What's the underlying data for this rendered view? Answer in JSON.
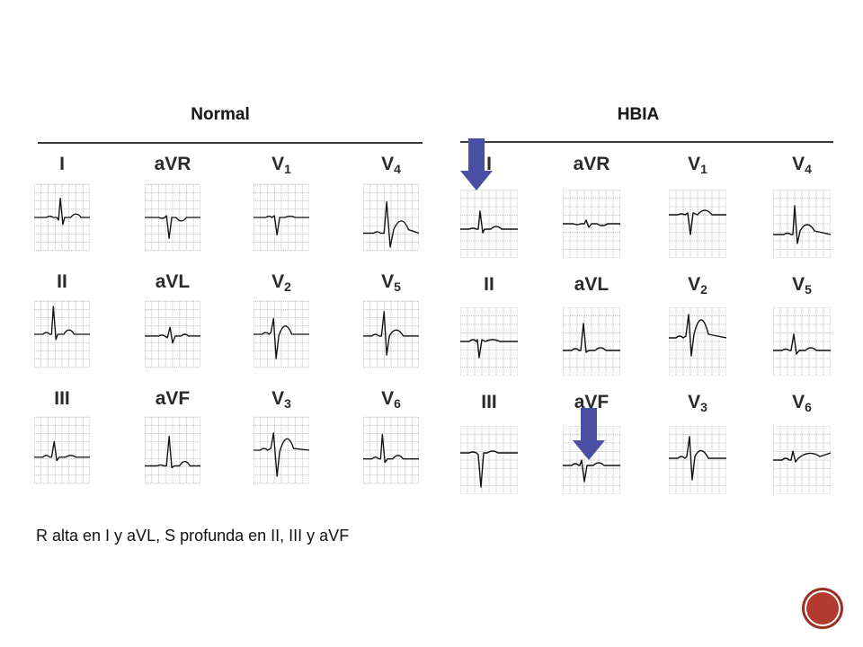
{
  "panels": {
    "normal": {
      "title": "Normal",
      "leads": [
        {
          "name": "I",
          "sub": ""
        },
        {
          "name": "aVR",
          "sub": ""
        },
        {
          "name": "V",
          "sub": "1"
        },
        {
          "name": "V",
          "sub": "4"
        },
        {
          "name": "II",
          "sub": ""
        },
        {
          "name": "aVL",
          "sub": ""
        },
        {
          "name": "V",
          "sub": "2"
        },
        {
          "name": "V",
          "sub": "5"
        },
        {
          "name": "III",
          "sub": ""
        },
        {
          "name": "aVF",
          "sub": ""
        },
        {
          "name": "V",
          "sub": "3"
        },
        {
          "name": "V",
          "sub": "6"
        }
      ]
    },
    "hbia": {
      "title": "HBIA",
      "leads": [
        {
          "name": "I",
          "sub": ""
        },
        {
          "name": "aVR",
          "sub": ""
        },
        {
          "name": "V",
          "sub": "1"
        },
        {
          "name": "V",
          "sub": "4"
        },
        {
          "name": "II",
          "sub": ""
        },
        {
          "name": "aVL",
          "sub": ""
        },
        {
          "name": "V",
          "sub": "2"
        },
        {
          "name": "V",
          "sub": "5"
        },
        {
          "name": "III",
          "sub": ""
        },
        {
          "name": "aVF",
          "sub": ""
        },
        {
          "name": "V",
          "sub": "3"
        },
        {
          "name": "V",
          "sub": "6"
        }
      ]
    }
  },
  "caption": "R alta en I y aVL, S profunda en II, III y aVF",
  "colors": {
    "arrow": "#4b4fa3",
    "grid": "#b8b8b8",
    "trace": "#111111",
    "badge": "#b33a2e"
  },
  "icons": {
    "arrow": "down-arrow-icon",
    "badge": "slide-badge-icon"
  }
}
